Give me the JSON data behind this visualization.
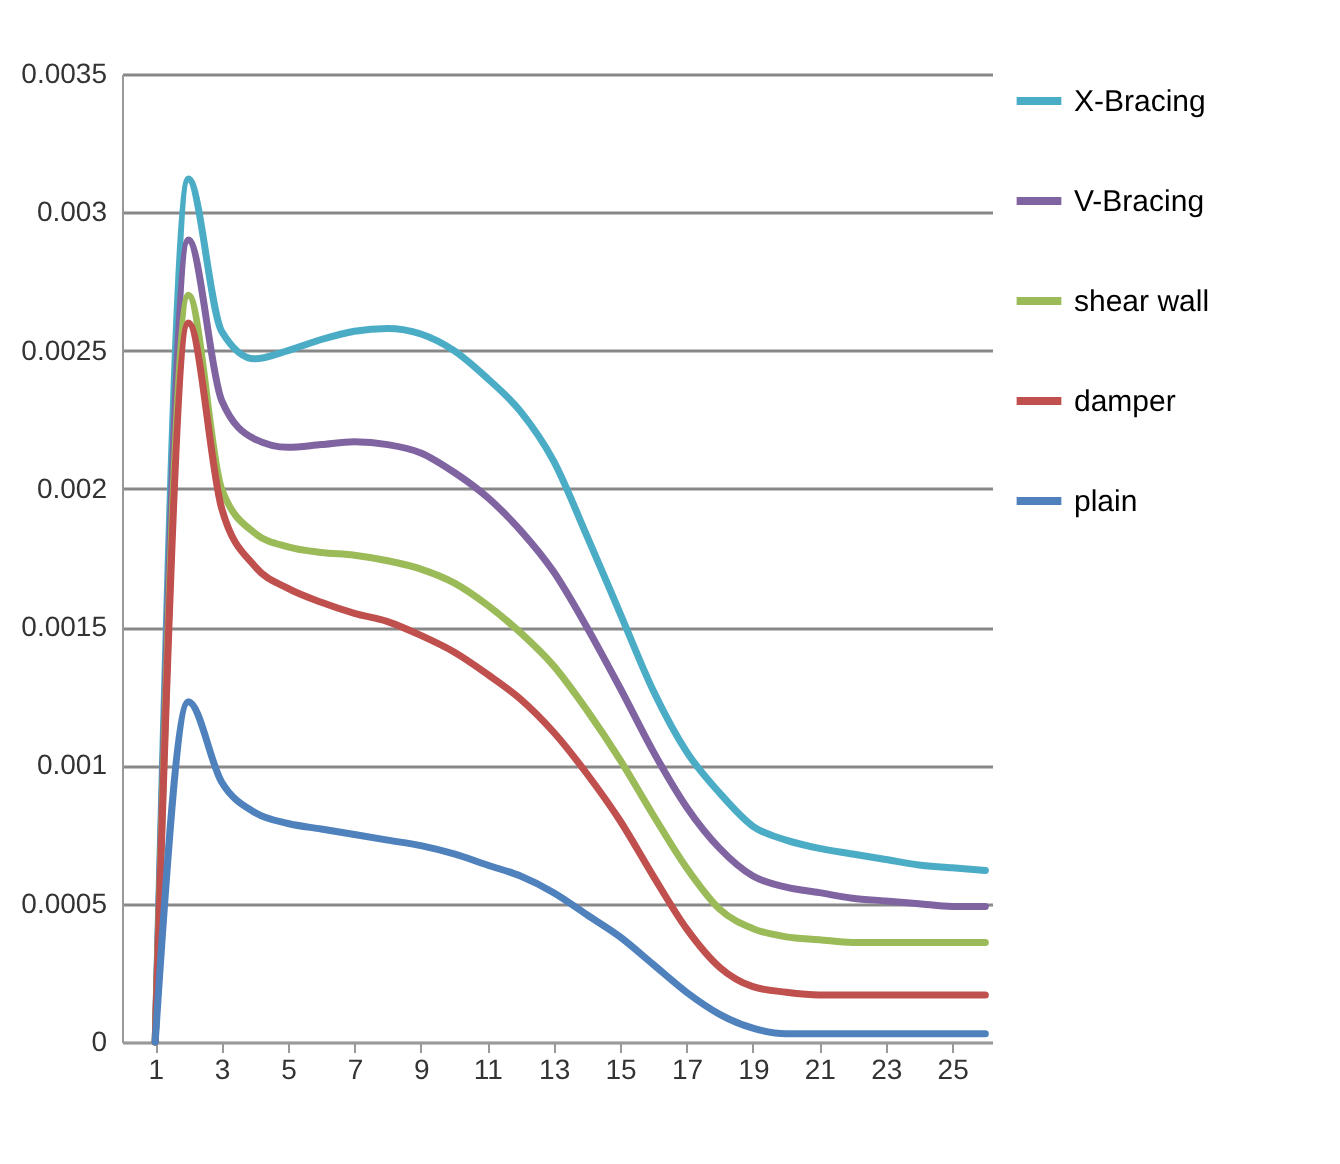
{
  "chart_data": {
    "type": "line",
    "x": [
      1,
      2,
      3,
      4,
      5,
      6,
      7,
      8,
      9,
      10,
      11,
      12,
      13,
      14,
      15,
      16,
      17,
      18,
      19,
      20,
      21,
      22,
      23,
      24,
      25,
      26
    ],
    "series": [
      {
        "name": "X-Bracing",
        "color": "#4bacc6",
        "values": [
          0,
          0.00312,
          0.00257,
          0.00247,
          0.0025,
          0.00254,
          0.00257,
          0.00258,
          0.00256,
          0.0025,
          0.0024,
          0.00228,
          0.0021,
          0.00183,
          0.00155,
          0.00127,
          0.00105,
          0.0009,
          0.00078,
          0.00073,
          0.0007,
          0.00068,
          0.00066,
          0.00064,
          0.00063,
          0.00062
        ]
      },
      {
        "name": "V-Bracing",
        "color": "#8064a2",
        "values": [
          0,
          0.0029,
          0.00232,
          0.00218,
          0.00215,
          0.00216,
          0.00217,
          0.00216,
          0.00213,
          0.00206,
          0.00197,
          0.00185,
          0.0017,
          0.0015,
          0.00128,
          0.00105,
          0.00085,
          0.0007,
          0.0006,
          0.00056,
          0.00054,
          0.00052,
          0.00051,
          0.0005,
          0.00049,
          0.00049
        ]
      },
      {
        "name": "shear wall",
        "color": "#9bbb59",
        "values": [
          0,
          0.0027,
          0.002,
          0.00184,
          0.00179,
          0.00177,
          0.00176,
          0.00174,
          0.00171,
          0.00166,
          0.00158,
          0.00148,
          0.00136,
          0.0012,
          0.00102,
          0.00082,
          0.00063,
          0.00048,
          0.00041,
          0.00038,
          0.00037,
          0.00036,
          0.00036,
          0.00036,
          0.00036,
          0.00036
        ]
      },
      {
        "name": "damper",
        "color": "#c0504d",
        "values": [
          0,
          0.0026,
          0.00193,
          0.00172,
          0.00164,
          0.00159,
          0.00155,
          0.00152,
          0.00147,
          0.00141,
          0.00133,
          0.00124,
          0.00112,
          0.00097,
          0.0008,
          0.0006,
          0.00041,
          0.00027,
          0.0002,
          0.00018,
          0.00017,
          0.00017,
          0.00017,
          0.00017,
          0.00017,
          0.00017
        ]
      },
      {
        "name": "plain",
        "color": "#4f81bd",
        "values": [
          0,
          0.00123,
          0.00094,
          0.00083,
          0.00079,
          0.00077,
          0.00075,
          0.00073,
          0.00071,
          0.00068,
          0.00064,
          0.0006,
          0.00054,
          0.00046,
          0.00038,
          0.00028,
          0.00018,
          0.0001,
          5e-05,
          3e-05,
          3e-05,
          3e-05,
          3e-05,
          3e-05,
          3e-05,
          3e-05
        ]
      }
    ],
    "xlim": [
      0,
      26.2
    ],
    "xticks": [
      1,
      3,
      5,
      7,
      9,
      11,
      13,
      15,
      17,
      19,
      21,
      23,
      25
    ],
    "ylim": [
      0,
      0.0035
    ],
    "yticks": [
      0,
      0.0005,
      0.001,
      0.0015,
      0.002,
      0.0025,
      0.003,
      0.0035
    ],
    "grid": "y",
    "legend": "right",
    "marker": "none",
    "line_style": "solid"
  }
}
